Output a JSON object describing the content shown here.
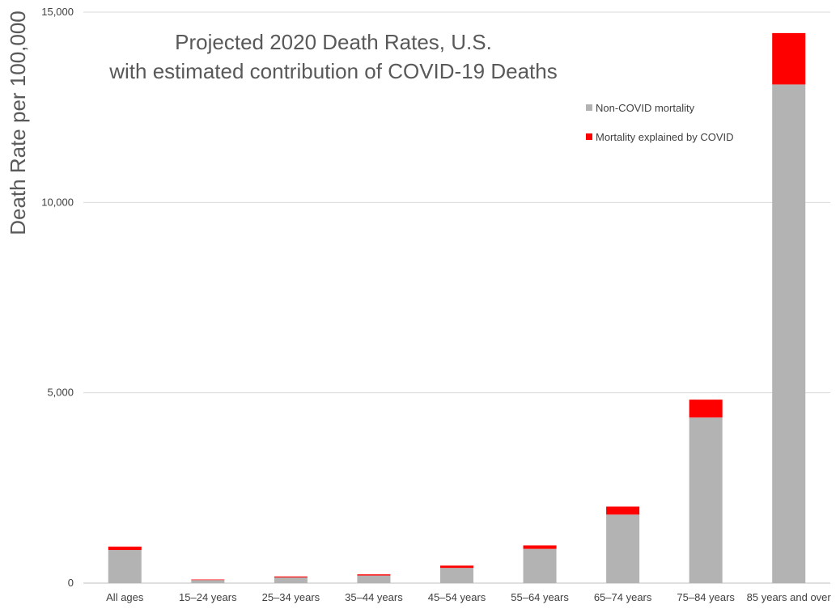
{
  "chart_data": {
    "type": "bar",
    "stacked": true,
    "title": [
      "Projected 2020 Death Rates, U.S.",
      "with estimated contribution of COVID-19 Deaths"
    ],
    "xlabel": "",
    "ylabel": "Death Rate per 100,000",
    "ylim": [
      0,
      15000
    ],
    "yticks": [
      0,
      5000,
      10000,
      15000
    ],
    "ytick_labels": [
      "0",
      "5,000",
      "10,000",
      "15,000"
    ],
    "grid": true,
    "legend_position": "top-right",
    "categories": [
      "All ages",
      "15–24 years",
      "25–34 years",
      "35–44 years",
      "45–54 years",
      "55–64 years",
      "65–74 years",
      "75–84 years",
      "85 years and over"
    ],
    "series": [
      {
        "name": "Non-COVID mortality",
        "color": "#b3b3b3",
        "values": [
          870,
          80,
          150,
          200,
          400,
          900,
          1800,
          4350,
          13100
        ]
      },
      {
        "name": "Mortality explained by COVID",
        "color": "#ff0000",
        "values": [
          90,
          15,
          25,
          30,
          60,
          90,
          210,
          470,
          1350
        ]
      }
    ]
  }
}
